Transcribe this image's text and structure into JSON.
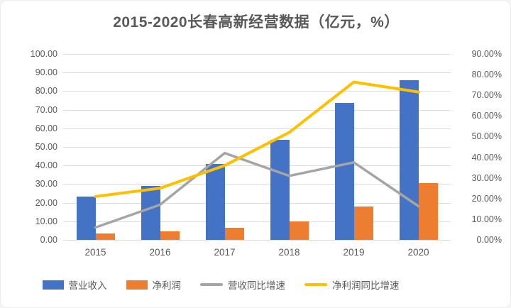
{
  "page": {
    "title": "2015-2020长春高新经营数据（亿元，%）"
  },
  "chart_data": {
    "type": "bar+line combo (dual axis)",
    "title": "2015-2020长春高新经营数据（亿元，%）",
    "categories": [
      "2015",
      "2016",
      "2017",
      "2018",
      "2019",
      "2020"
    ],
    "bar_series": [
      {
        "name": "营业收入",
        "axis": "left",
        "unit": "亿元",
        "color": "#4472C4",
        "values": [
          23.4,
          29.0,
          41.0,
          53.7,
          73.7,
          85.8
        ]
      },
      {
        "name": "净利润",
        "axis": "left",
        "unit": "亿元",
        "color": "#ED7D31",
        "values": [
          3.5,
          4.5,
          6.6,
          10.1,
          17.8,
          30.5
        ]
      }
    ],
    "line_series": [
      {
        "name": "营收同比增速",
        "axis": "right",
        "unit": "%",
        "color": "#A5A5A5",
        "stroke_width": 3.5,
        "values": [
          6.0,
          17.0,
          42.0,
          31.0,
          37.5,
          16.3
        ]
      },
      {
        "name": "净利润同比增速",
        "axis": "right",
        "unit": "%",
        "color": "#FFC000",
        "stroke_width": 4,
        "values": [
          21.0,
          25.0,
          36.0,
          52.0,
          76.4,
          71.6
        ]
      }
    ],
    "left_axis": {
      "min": 0,
      "max": 100,
      "step": 10,
      "tick_labels": [
        "0.00",
        "10.00",
        "20.00",
        "30.00",
        "40.00",
        "50.00",
        "60.00",
        "70.00",
        "80.00",
        "90.00",
        "100.00"
      ]
    },
    "right_axis": {
      "min": 0,
      "max": 90,
      "step": 10,
      "tick_labels": [
        "0.00%",
        "10.00%",
        "20.00%",
        "30.00%",
        "40.00%",
        "50.00%",
        "60.00%",
        "70.00%",
        "80.00%",
        "90.00%"
      ]
    },
    "grid": true,
    "gridline_color": "#dcdcdc",
    "legend_position": "bottom",
    "text_color": "#595959",
    "background_color": "#ffffff"
  }
}
